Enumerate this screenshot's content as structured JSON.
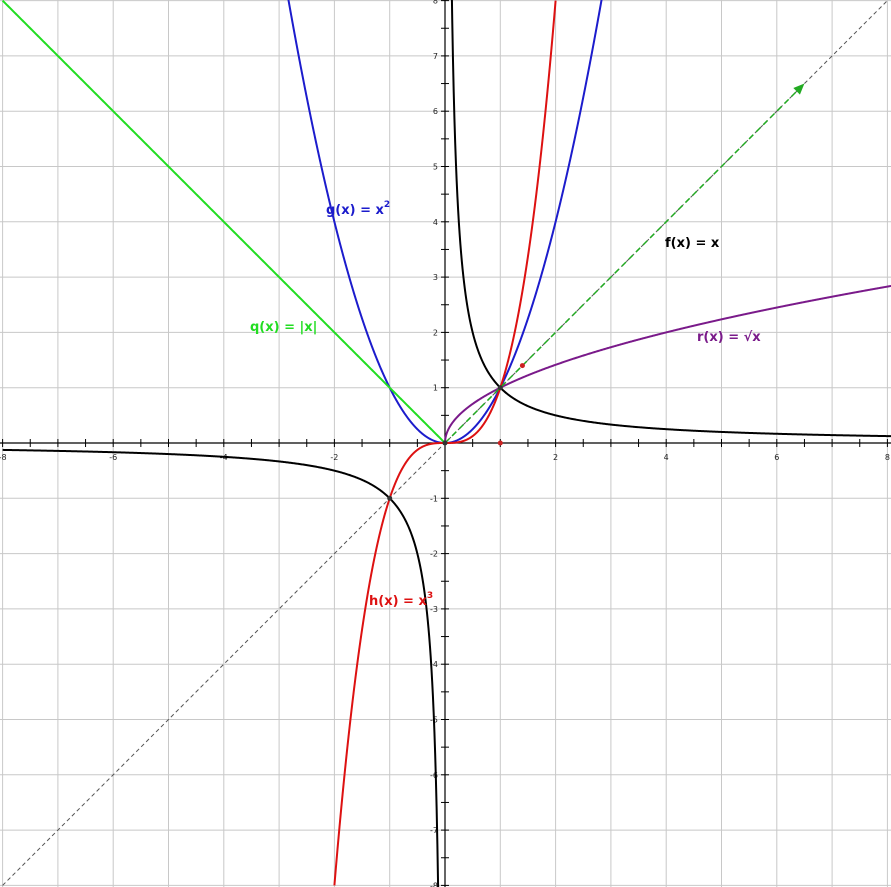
{
  "chart_data": {
    "type": "line",
    "title": "",
    "xlabel": "",
    "ylabel": "",
    "xlim": [
      -8,
      8.1
    ],
    "ylim": [
      -8,
      8
    ],
    "grid": true,
    "x_ticks": [
      -8,
      -6,
      -4,
      -2,
      2,
      4,
      6,
      8
    ],
    "y_ticks": [
      -8,
      -7,
      -6,
      -5,
      -4,
      -3,
      -2,
      -1,
      1,
      2,
      3,
      4,
      5,
      6,
      7,
      8
    ],
    "series": [
      {
        "key": "g",
        "label": "g(x) = x",
        "sup": "2",
        "color": "#1c1ccc",
        "formula": "x^2",
        "domain": [
          -2.9,
          2.9
        ]
      },
      {
        "key": "h",
        "label": "h(x) = x",
        "sup": "3",
        "color": "#dd1111",
        "formula": "x^3",
        "domain": [
          -2.0,
          2.0
        ]
      },
      {
        "key": "q",
        "label": "q(x) = |x|",
        "color": "#22dd22",
        "formula": "abs(x)",
        "domain": [
          -8.0,
          0.0
        ]
      },
      {
        "key": "r",
        "label": "r(x) = √x",
        "color": "#7a1a8a",
        "formula": "sqrt(x)",
        "domain": [
          0.0,
          8.1
        ]
      },
      {
        "key": "k",
        "label": "",
        "color": "#000000",
        "formula": "1/x",
        "domain": [
          -8.0,
          8.1
        ]
      }
    ],
    "f_label": "f(x) = x",
    "reference_line": {
      "formula": "x",
      "style": "dashed",
      "color": "#555555"
    },
    "vector": {
      "from": [
        0,
        0
      ],
      "to": [
        6.5,
        6.5
      ],
      "color": "#22aa22",
      "style": "dashed"
    },
    "intersections": [
      [
        0,
        0
      ],
      [
        1,
        1
      ],
      [
        -1,
        -1
      ]
    ],
    "points": [
      {
        "x": 1,
        "y": 0,
        "color": "#cc2222"
      },
      {
        "x": 1.4,
        "y": 1.4,
        "color": "#cc2222"
      }
    ]
  }
}
